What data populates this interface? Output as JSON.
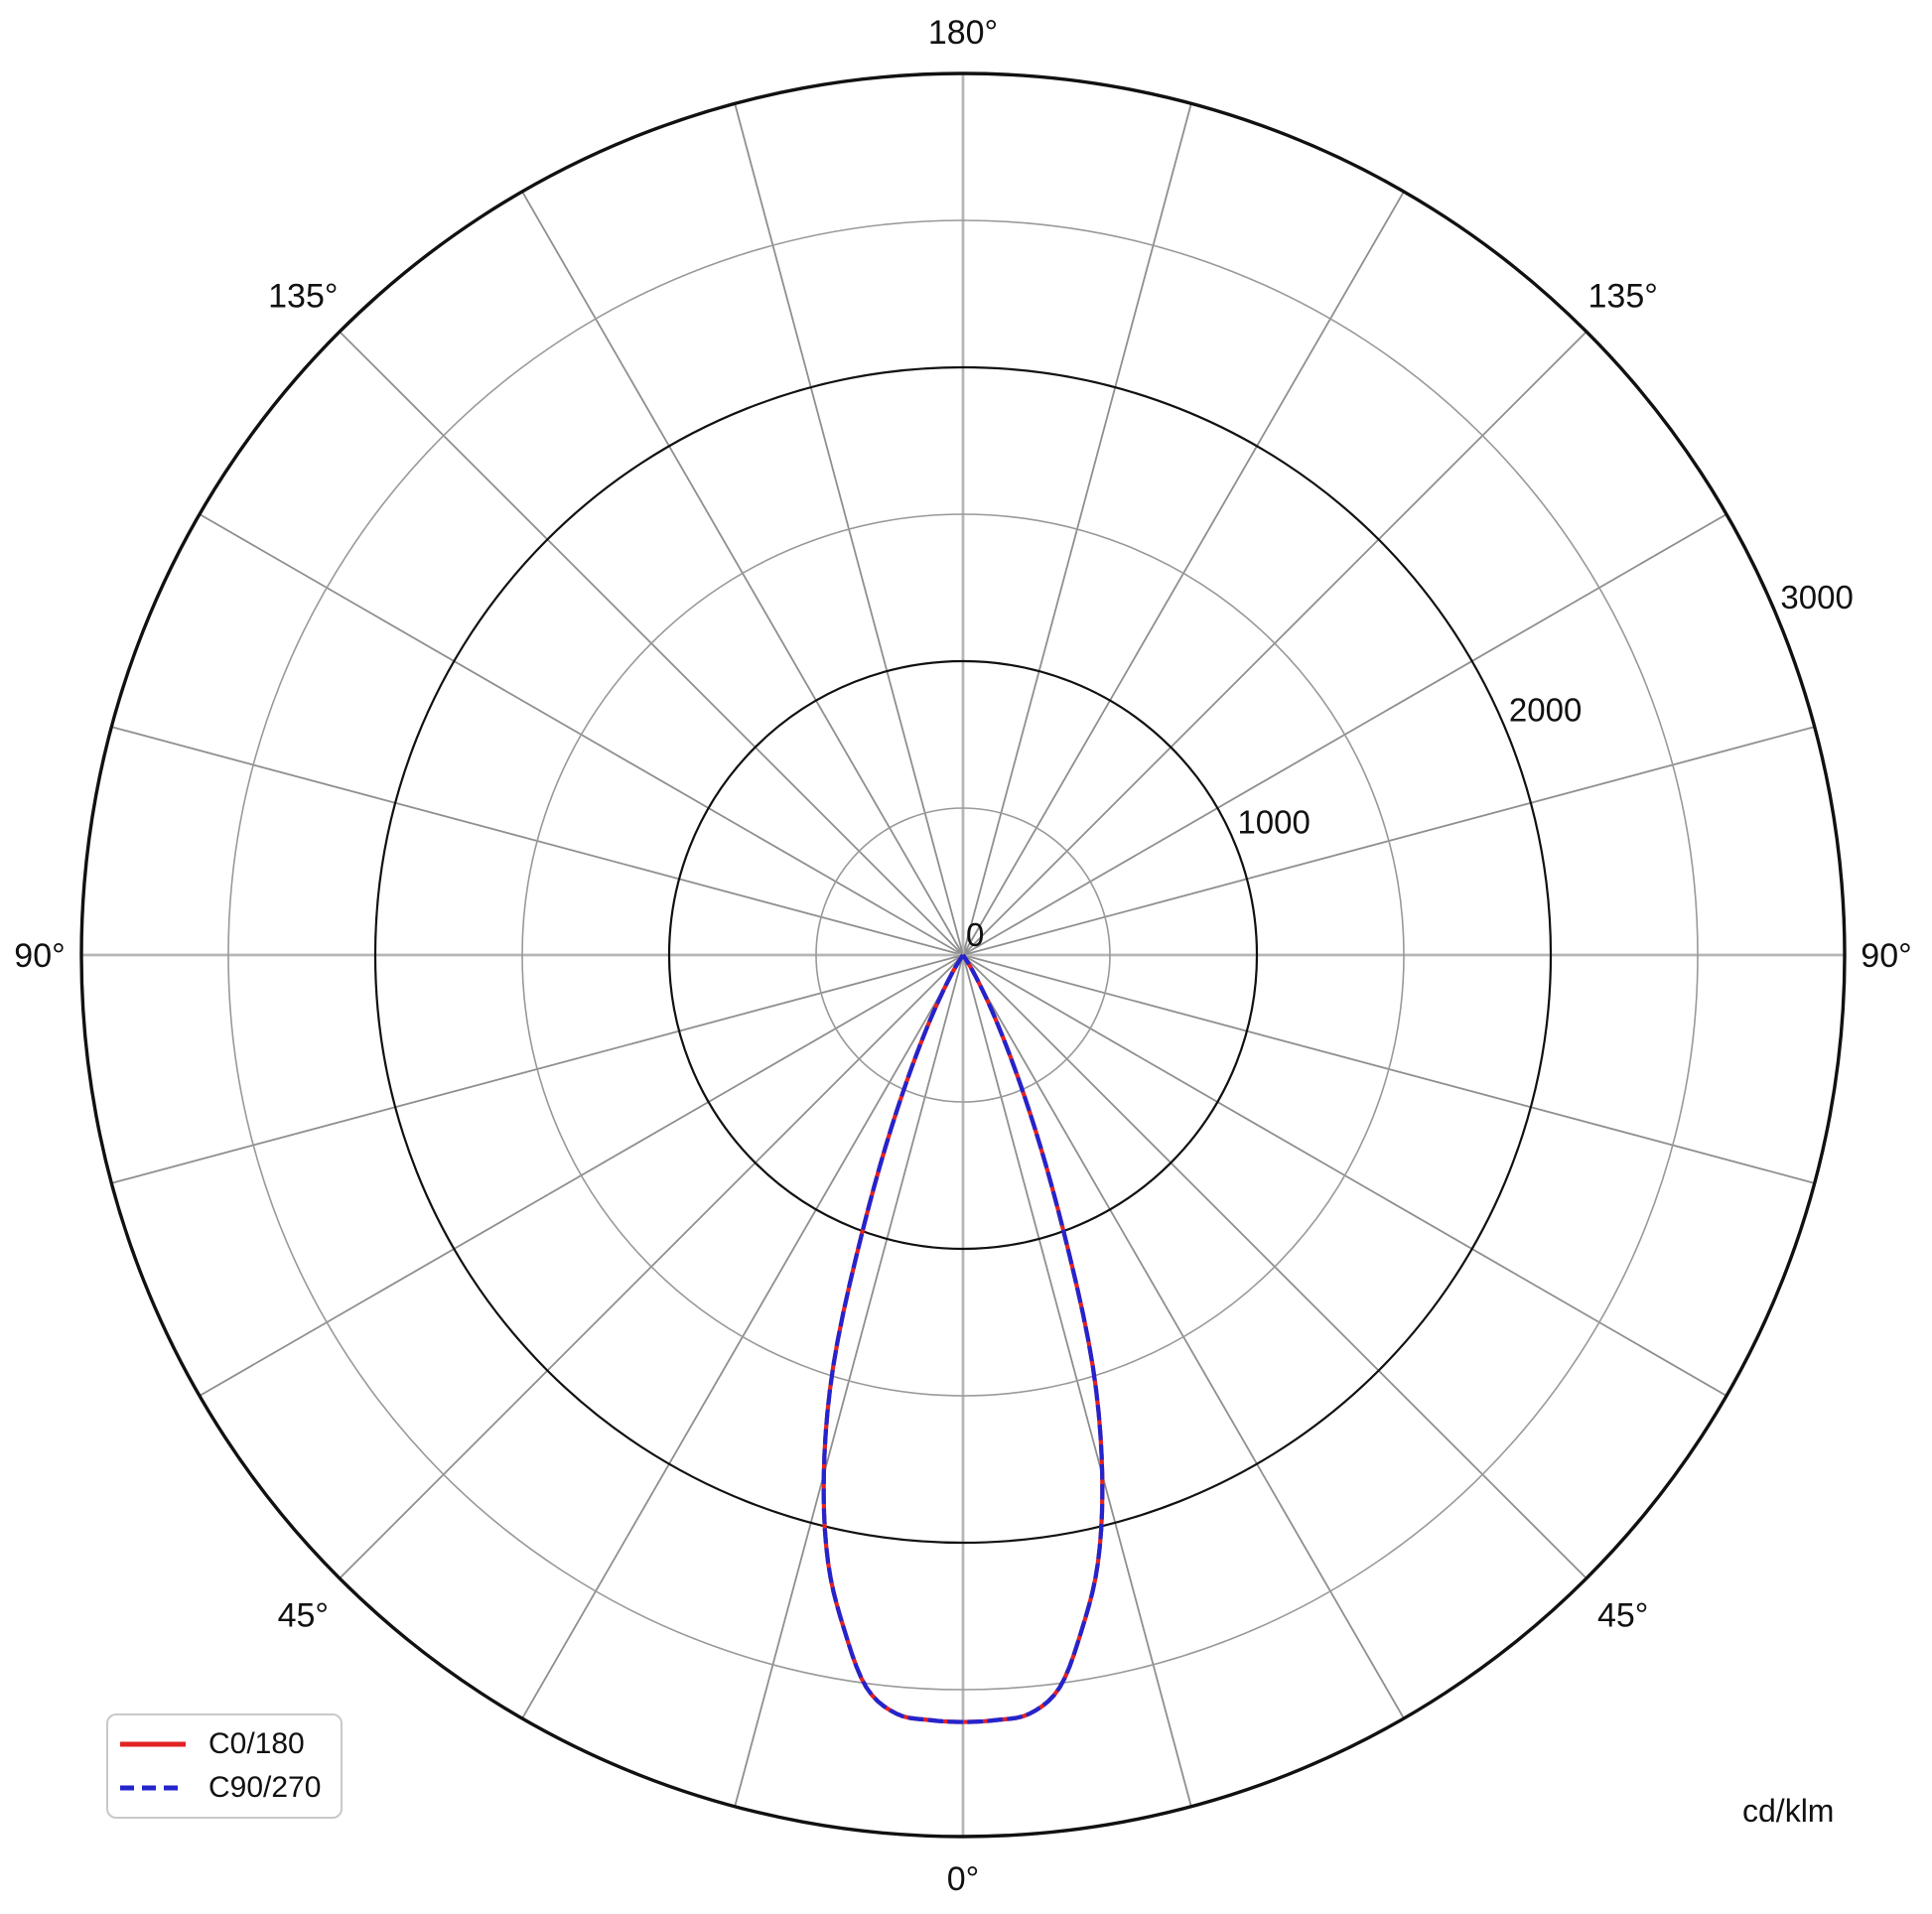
{
  "unit_label": "cd/klm",
  "legend": {
    "entries": [
      {
        "label": "C0/180",
        "color": "#e32222",
        "style": "solid"
      },
      {
        "label": "C90/270",
        "color": "#2424cc",
        "style": "dashed"
      }
    ]
  },
  "colors": {
    "major_ring": "#111111",
    "outer_ring": "#111111",
    "minor_ring": "#999999",
    "radial_grid": "#8f8f8f",
    "axis_cross": "#b6b6b6",
    "text": "#111111",
    "c0_180": "#e32222",
    "c90_270": "#2424cc"
  },
  "chart_data": {
    "type": "polar-line",
    "description": "Luminous intensity distribution curve (photometric polar diagram), 0 deg pointing down",
    "units": "cd/klm",
    "r_axis": {
      "max": 3000,
      "major_ticks": [
        1000,
        2000,
        3000
      ],
      "minor_ticks": [
        500,
        1500,
        2500
      ],
      "tick_labels": [
        "0",
        "1000",
        "2000",
        "3000"
      ],
      "tick_label_values": [
        0,
        1000,
        2000,
        3000
      ],
      "label_angle_deg": 22.5
    },
    "angle_axis": {
      "grid_step_deg": 15,
      "zero_direction": "down",
      "labels": [
        {
          "text": "180°",
          "angle_from_down_deg": 180
        },
        {
          "text": "135°",
          "angle_from_down_deg": 135
        },
        {
          "text": "135°",
          "angle_from_down_deg": -135
        },
        {
          "text": "90°",
          "angle_from_down_deg": 90
        },
        {
          "text": "90°",
          "angle_from_down_deg": -90
        },
        {
          "text": "45°",
          "angle_from_down_deg": 45
        },
        {
          "text": "45°",
          "angle_from_down_deg": -45
        },
        {
          "text": "0°",
          "angle_from_down_deg": 0
        }
      ]
    },
    "series": [
      {
        "name": "C0/180",
        "color": "#e32222",
        "dash": "solid",
        "gamma_deg": [
          0,
          2.5,
          5,
          7.5,
          10,
          12.5,
          15,
          17.5,
          20,
          22.5,
          25,
          27.5,
          30,
          32.5,
          35
        ],
        "cd_per_klm": [
          2610,
          2606,
          2592,
          2515,
          2330,
          2120,
          1830,
          1470,
          1000,
          640,
          380,
          210,
          100,
          40,
          0
        ],
        "symmetric": true
      },
      {
        "name": "C90/270",
        "color": "#2424cc",
        "dash": "dashed",
        "gamma_deg": [
          0,
          2.5,
          5,
          7.5,
          10,
          12.5,
          15,
          17.5,
          20,
          22.5,
          25,
          27.5,
          30,
          32.5,
          35
        ],
        "cd_per_klm": [
          2610,
          2606,
          2592,
          2515,
          2330,
          2120,
          1830,
          1470,
          1000,
          640,
          380,
          210,
          100,
          40,
          0
        ],
        "symmetric": true
      }
    ]
  }
}
